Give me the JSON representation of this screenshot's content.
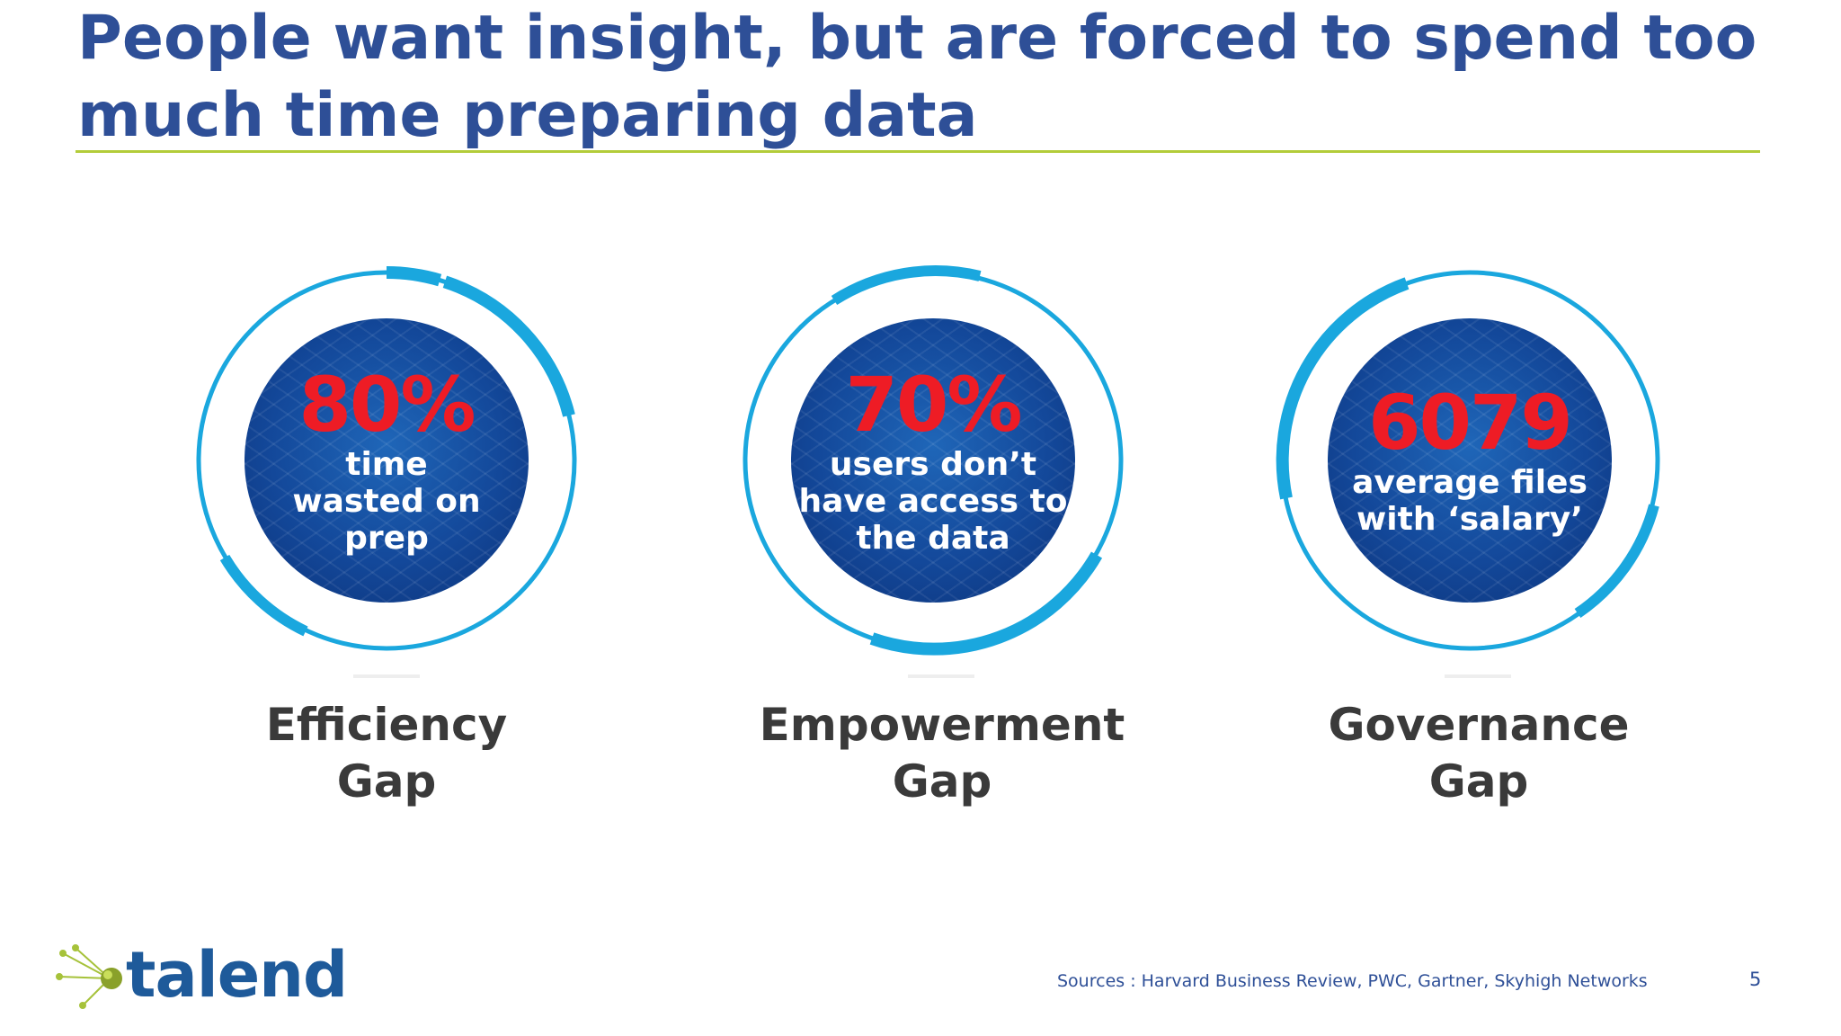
{
  "slide": {
    "title": "People want insight, but are forced to spend too much time preparing data",
    "stats": [
      {
        "value": "80%",
        "description": "time\nwasted on\nprep",
        "label": "Efficiency\nGap"
      },
      {
        "value": "70%",
        "description": "users don’t\nhave access to\nthe data",
        "label": "Empowerment\nGap"
      },
      {
        "value": "6079",
        "description": "average files\nwith ‘salary’",
        "label": "Governance\nGap"
      }
    ],
    "sources": "Sources : Harvard Business Review, PWC, Gartner, Skyhigh Networks",
    "page_number": "5"
  },
  "logo": {
    "text": "talend"
  },
  "colors": {
    "title": "#2e4f97",
    "accent_rule": "#b3cc3a",
    "ring": "#1aa7de",
    "value": "#ee1c25",
    "circle": "#13489a",
    "gap_label": "#3a3a3a"
  }
}
